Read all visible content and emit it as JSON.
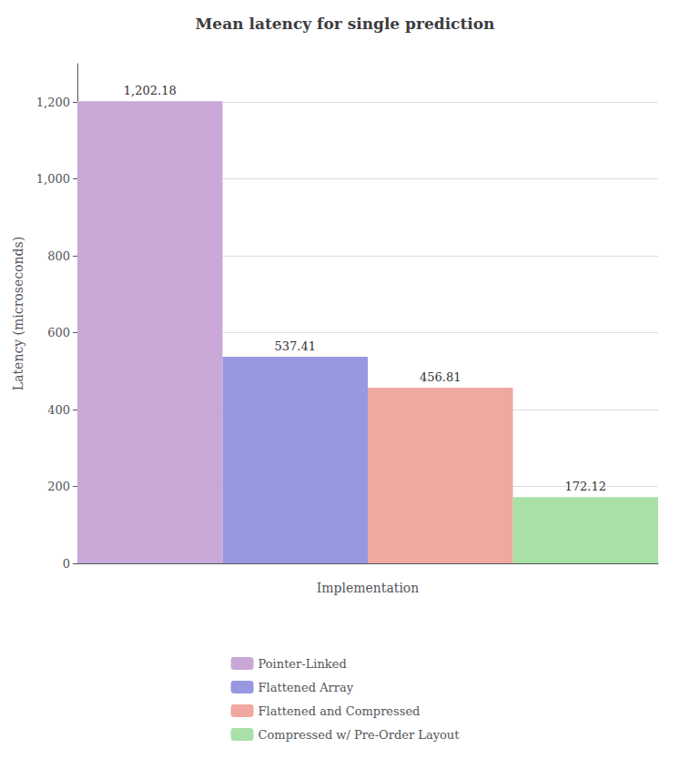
{
  "chart_data": {
    "type": "bar",
    "title": "Mean latency for single prediction",
    "xlabel": "Implementation",
    "ylabel": "Latency (microseconds)",
    "categories": [
      "Pointer-Linked",
      "Flattened Array",
      "Flattened and Compressed",
      "Compressed w/ Pre-Order Layout"
    ],
    "values": [
      1202.18,
      537.41,
      456.81,
      172.12
    ],
    "value_labels": [
      "1,202.18",
      "537.41",
      "456.81",
      "172.12"
    ],
    "colors": [
      "#c9a8d8",
      "#9898e0",
      "#f0a8a0",
      "#a8e0a8"
    ],
    "ylim": [
      0,
      1300
    ],
    "yticks": [
      0,
      200,
      400,
      600,
      800,
      {
        "value": 1000,
        "label": "1,000"
      },
      {
        "value": 1200,
        "label": "1,200"
      }
    ],
    "grid": true,
    "legend": "bottom",
    "data_labels": true,
    "tick_labels": "y"
  }
}
